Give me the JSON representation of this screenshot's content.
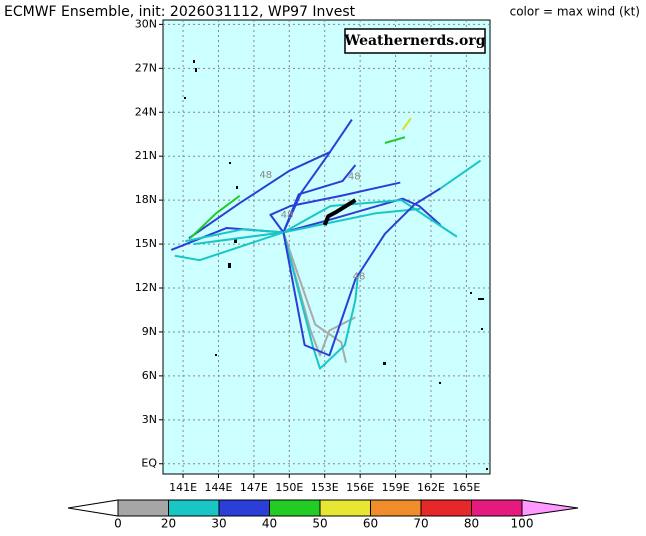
{
  "header": {
    "title": "ECMWF Ensemble, init: 2026031112, WP97 Invest",
    "legend_title": "color = max wind (kt)"
  },
  "logo": "Weathernerds.org",
  "map": {
    "lonlim": [
      139.3,
      167.0
    ],
    "latlim": [
      -0.7,
      30.3
    ],
    "lat_ticks": [
      {
        "value": 30,
        "label": "30N"
      },
      {
        "value": 27,
        "label": "27N"
      },
      {
        "value": 24,
        "label": "24N"
      },
      {
        "value": 21,
        "label": "21N"
      },
      {
        "value": 18,
        "label": "18N"
      },
      {
        "value": 15,
        "label": "15N"
      },
      {
        "value": 12,
        "label": "12N"
      },
      {
        "value": 9,
        "label": "9N"
      },
      {
        "value": 6,
        "label": "6N"
      },
      {
        "value": 3,
        "label": "3N"
      },
      {
        "value": 0,
        "label": "EQ"
      }
    ],
    "lon_ticks": [
      {
        "value": 141,
        "label": "141E"
      },
      {
        "value": 144,
        "label": "144E"
      },
      {
        "value": 147,
        "label": "147E"
      },
      {
        "value": 150,
        "label": "150E"
      },
      {
        "value": 153,
        "label": "153E"
      },
      {
        "value": 156,
        "label": "156E"
      },
      {
        "value": 159,
        "label": "159E"
      },
      {
        "value": 162,
        "label": "162E"
      },
      {
        "value": 165,
        "label": "165E"
      }
    ],
    "tracks": [
      {
        "color": "#2b3fd8",
        "lon": [
          149.5,
          151.0,
          153.2,
          155.3
        ],
        "lat": [
          15.8,
          18.5,
          21.0,
          23.5
        ]
      },
      {
        "color": "#2b3fd8",
        "lon": [
          141.5,
          145.8,
          150.0,
          153.5
        ],
        "lat": [
          15.4,
          17.8,
          20.0,
          21.3
        ]
      },
      {
        "color": "#2b3fd8",
        "lon": [
          149.5,
          150.8,
          154.5,
          155.6
        ],
        "lat": [
          15.8,
          18.4,
          19.3,
          20.4
        ]
      },
      {
        "color": "#2b3fd8",
        "lon": [
          140.0,
          144.7,
          149.5,
          153.6,
          159.6,
          161.0,
          162.8
        ],
        "lat": [
          14.6,
          16.1,
          15.8,
          16.7,
          18.1,
          17.6,
          16.3
        ]
      },
      {
        "color": "#19c6c6",
        "lon": [
          149.5,
          153.5,
          159.5,
          164.2
        ],
        "lat": [
          15.8,
          17.6,
          18.0,
          15.5
        ]
      },
      {
        "color": "#19c6c6",
        "lon": [
          141.9,
          149.5,
          157.3,
          161.1
        ],
        "lat": [
          15.0,
          15.8,
          17.1,
          17.4
        ]
      },
      {
        "color": "#19c6c6",
        "lon": [
          140.3,
          142.4,
          149.5
        ],
        "lat": [
          14.2,
          13.9,
          15.8
        ]
      },
      {
        "color": "#2b3fd8",
        "lon": [
          149.5,
          148.4,
          150.1,
          154.4,
          159.4
        ],
        "lat": [
          15.8,
          17.0,
          17.6,
          18.3,
          19.2
        ]
      },
      {
        "color": "#aaaaaa",
        "lon": [
          149.5,
          151.8,
          152.6,
          153.4,
          155.6
        ],
        "lat": [
          15.8,
          9.1,
          7.4,
          9.1,
          10.0
        ]
      },
      {
        "color": "#aaaaaa",
        "lon": [
          149.5,
          152.2,
          154.4,
          154.8
        ],
        "lat": [
          15.8,
          9.5,
          8.3,
          6.9
        ]
      },
      {
        "color": "#19c6c6",
        "lon": [
          149.5,
          152.0,
          152.6,
          154.7,
          155.6,
          155.8
        ],
        "lat": [
          15.8,
          8.0,
          6.5,
          8.1,
          11.2,
          12.8
        ]
      },
      {
        "color": "#2b3fd8",
        "lon": [
          149.5,
          151.3,
          153.4,
          155.6,
          158.1,
          160.6,
          162.8
        ],
        "lat": [
          15.8,
          8.1,
          7.4,
          12.6,
          15.7,
          17.7,
          18.8
        ]
      },
      {
        "color": "#19c6c6",
        "lon": [
          162.8,
          166.2
        ],
        "lat": [
          18.8,
          20.7
        ]
      },
      {
        "color": "#000000",
        "lon": [
          153.0,
          153.3,
          154.0,
          155.6
        ],
        "lat": [
          16.3,
          16.9,
          17.2,
          18.0
        ]
      },
      {
        "color": "#22cc22",
        "lon": [
          141.6,
          143.8,
          145.8
        ],
        "lat": [
          15.4,
          17.1,
          18.3
        ]
      },
      {
        "color": "#22cc22",
        "lon": [
          158.1,
          159.8
        ],
        "lat": [
          21.9,
          22.3
        ]
      },
      {
        "color": "#dddd22",
        "lon": [
          159.6,
          160.3
        ],
        "lat": [
          22.8,
          23.6
        ]
      },
      {
        "color": "#19c6c6",
        "lon": [
          141.2,
          146.0,
          149.5
        ],
        "lat": [
          15.2,
          16.0,
          15.8
        ]
      }
    ],
    "annotations": [
      {
        "text": "48",
        "lon": 148.0,
        "lat": 19.7
      },
      {
        "text": "48",
        "lon": 155.5,
        "lat": 19.6
      },
      {
        "text": "48",
        "lon": 149.8,
        "lat": 17.0
      },
      {
        "text": "48",
        "lon": 155.9,
        "lat": 12.8
      }
    ]
  },
  "colorbar": {
    "levels": [
      0,
      20,
      30,
      40,
      50,
      60,
      70,
      80,
      100
    ],
    "colors": [
      "#a6a6a6",
      "#19c6c6",
      "#2b3fd8",
      "#22cc22",
      "#e6e633",
      "#f08c2a",
      "#e62828",
      "#e6197f"
    ]
  }
}
